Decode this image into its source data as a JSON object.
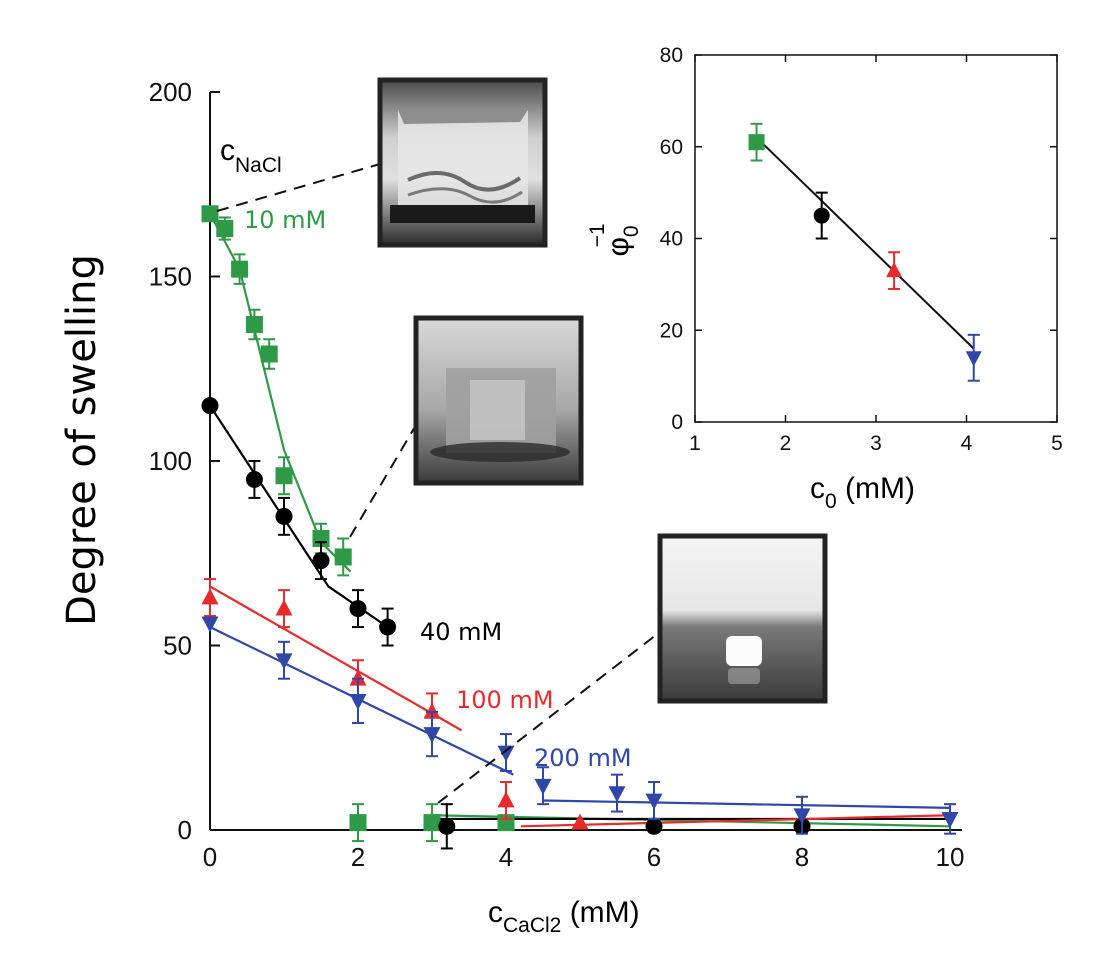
{
  "chart_data": [
    {
      "type": "scatter",
      "xlabel": "c",
      "xlabel_sub": "CaCl2",
      "xlabel_unit": " (mM)",
      "ylabel": "Degree of swelling",
      "xlim": [
        0,
        10
      ],
      "ylim": [
        0,
        200
      ],
      "xticks": [
        "0",
        "2",
        "4",
        "6",
        "8",
        "10"
      ],
      "yticks": [
        "0",
        "50",
        "100",
        "150",
        "200"
      ],
      "legend_title": "c",
      "legend_title_sub": "NaCl",
      "series": [
        {
          "name": "10 mM",
          "color": "#2e9a47",
          "marker": "square",
          "points": [
            [
              0,
              167,
              0
            ],
            [
              0.2,
              163,
              3
            ],
            [
              0.4,
              152,
              4
            ],
            [
              0.6,
              137,
              4
            ],
            [
              0.8,
              129,
              4
            ],
            [
              1.0,
              96,
              5
            ],
            [
              1.5,
              79,
              4
            ],
            [
              1.8,
              74,
              5
            ],
            [
              2.0,
              2,
              5
            ],
            [
              3.0,
              2,
              5
            ],
            [
              4.0,
              2,
              0
            ]
          ],
          "fit_lines": [
            [
              [
                0,
                167
              ],
              [
                0.4,
                152
              ],
              [
                1.0,
                103
              ],
              [
                1.5,
                78
              ],
              [
                1.9,
                70
              ]
            ],
            [
              [
                3.0,
                4
              ],
              [
                10,
                1
              ]
            ]
          ]
        },
        {
          "name": "40 mM",
          "color": "#000000",
          "marker": "circle",
          "points": [
            [
              0,
              115,
              0
            ],
            [
              0.6,
              95,
              5
            ],
            [
              1.0,
              85,
              5
            ],
            [
              1.5,
              73,
              5
            ],
            [
              2.0,
              60,
              5
            ],
            [
              2.4,
              55,
              5
            ],
            [
              3.2,
              1,
              6
            ],
            [
              6.0,
              1,
              0
            ],
            [
              8.0,
              1,
              0
            ]
          ],
          "fit_lines": [
            [
              [
                0,
                115
              ],
              [
                1.6,
                66
              ],
              [
                2.4,
                55
              ]
            ],
            [
              [
                3.0,
                3
              ],
              [
                10,
                3
              ]
            ]
          ]
        },
        {
          "name": "100 mM",
          "color": "#e82a2a",
          "marker": "triangle-up",
          "points": [
            [
              0,
              63,
              5
            ],
            [
              1.0,
              60,
              5
            ],
            [
              2.0,
              41,
              5
            ],
            [
              3.0,
              32,
              5
            ],
            [
              4.0,
              8,
              5
            ],
            [
              5.0,
              2,
              0
            ]
          ],
          "fit_lines": [
            [
              [
                0,
                66
              ],
              [
                3.4,
                27
              ]
            ],
            [
              [
                4.2,
                1
              ],
              [
                10,
                4
              ]
            ]
          ]
        },
        {
          "name": "200 mM",
          "color": "#2f47a8",
          "marker": "triangle-down",
          "points": [
            [
              0,
              56,
              0
            ],
            [
              1.0,
              46,
              5
            ],
            [
              2.0,
              35,
              6
            ],
            [
              3.0,
              26,
              6
            ],
            [
              4.0,
              21,
              5
            ],
            [
              4.5,
              12,
              5
            ],
            [
              5.5,
              10,
              5
            ],
            [
              6.0,
              8,
              5
            ],
            [
              8.0,
              4,
              5
            ],
            [
              10.0,
              3,
              4
            ]
          ],
          "fit_lines": [
            [
              [
                0,
                55
              ],
              [
                4.1,
                15
              ]
            ],
            [
              [
                4.5,
                8
              ],
              [
                10,
                6
              ]
            ]
          ]
        }
      ]
    },
    {
      "type": "scatter",
      "xlabel": "c",
      "xlabel_sub": "0",
      "xlabel_unit": " (mM)",
      "ylabel": "φ",
      "ylabel_sub": "0",
      "ylabel_sup": "−1",
      "xlim": [
        1,
        5
      ],
      "ylim": [
        0,
        80
      ],
      "xticks": [
        "1",
        "2",
        "3",
        "4",
        "5"
      ],
      "yticks": [
        "0",
        "20",
        "40",
        "60",
        "80"
      ],
      "points": [
        {
          "series": "10 mM",
          "x": 1.68,
          "y": 61,
          "err": 4
        },
        {
          "series": "40 mM",
          "x": 2.4,
          "y": 45,
          "err": 5
        },
        {
          "series": "100 mM",
          "x": 3.2,
          "y": 33,
          "err": 4
        },
        {
          "series": "200 mM",
          "x": 4.08,
          "y": 14,
          "err": 5
        }
      ],
      "fit_line": [
        [
          1.68,
          62
        ],
        [
          4.08,
          16
        ]
      ]
    }
  ]
}
